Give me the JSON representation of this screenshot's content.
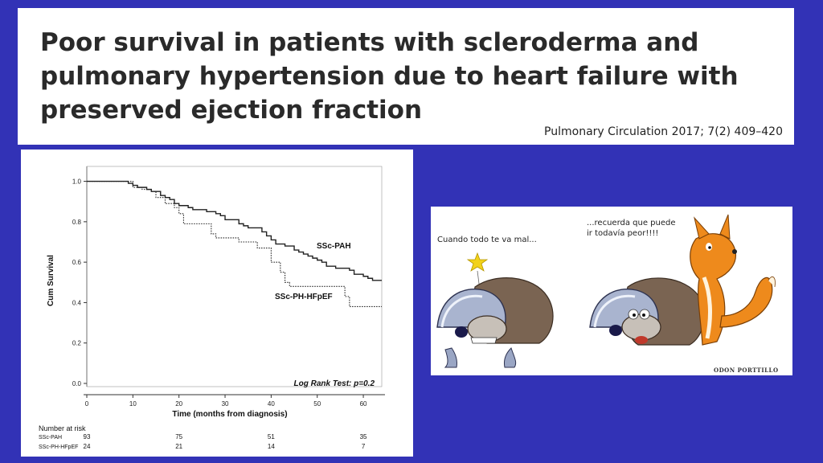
{
  "header": {
    "title": "Poor survival in patients with scleroderma and pulmonary hypertension due to heart failure with preserved ejection fraction",
    "citation": "Pulmonary Circulation 2017; 7(2) 409–420"
  },
  "chart_data": {
    "type": "line",
    "xlabel": "Time (months from diagnosis)",
    "ylabel": "Cum Survival",
    "xlim": [
      0,
      64
    ],
    "ylim": [
      0,
      1.05
    ],
    "xticks": [
      0,
      10,
      20,
      30,
      40,
      50,
      60
    ],
    "yticks": [
      0.0,
      0.2,
      0.4,
      0.6,
      0.8,
      1.0
    ],
    "annotation": "Log Rank Test: p=0.2",
    "series": [
      {
        "name": "SSc-PAH",
        "style": "solid",
        "steps": [
          [
            0,
            1.0
          ],
          [
            9,
            0.99
          ],
          [
            10,
            0.98
          ],
          [
            11,
            0.97
          ],
          [
            13,
            0.96
          ],
          [
            14,
            0.95
          ],
          [
            16,
            0.93
          ],
          [
            17,
            0.92
          ],
          [
            18,
            0.91
          ],
          [
            19,
            0.89
          ],
          [
            20,
            0.88
          ],
          [
            22,
            0.87
          ],
          [
            23,
            0.86
          ],
          [
            26,
            0.85
          ],
          [
            28,
            0.84
          ],
          [
            29,
            0.83
          ],
          [
            30,
            0.81
          ],
          [
            33,
            0.79
          ],
          [
            34,
            0.78
          ],
          [
            35,
            0.77
          ],
          [
            38,
            0.75
          ],
          [
            39,
            0.73
          ],
          [
            40,
            0.71
          ],
          [
            41,
            0.69
          ],
          [
            43,
            0.68
          ],
          [
            45,
            0.66
          ],
          [
            46,
            0.65
          ],
          [
            47,
            0.64
          ],
          [
            48,
            0.63
          ],
          [
            49,
            0.62
          ],
          [
            50,
            0.61
          ],
          [
            51,
            0.6
          ],
          [
            52,
            0.58
          ],
          [
            54,
            0.57
          ],
          [
            57,
            0.56
          ],
          [
            58,
            0.54
          ],
          [
            60,
            0.53
          ],
          [
            61,
            0.52
          ],
          [
            62,
            0.51
          ],
          [
            64,
            0.51
          ]
        ]
      },
      {
        "name": "SSc-PH-HFpEF",
        "style": "dotted",
        "steps": [
          [
            0,
            1.0
          ],
          [
            10,
            0.97
          ],
          [
            12,
            0.96
          ],
          [
            14,
            0.95
          ],
          [
            15,
            0.92
          ],
          [
            17,
            0.89
          ],
          [
            19,
            0.87
          ],
          [
            20,
            0.84
          ],
          [
            21,
            0.79
          ],
          [
            27,
            0.74
          ],
          [
            28,
            0.72
          ],
          [
            33,
            0.7
          ],
          [
            37,
            0.67
          ],
          [
            40,
            0.6
          ],
          [
            42,
            0.55
          ],
          [
            43,
            0.5
          ],
          [
            44,
            0.48
          ],
          [
            56,
            0.43
          ],
          [
            57,
            0.38
          ],
          [
            64,
            0.38
          ]
        ]
      }
    ],
    "risk_table": {
      "title": "Number at risk",
      "columns_x": [
        0,
        20,
        40,
        60
      ],
      "rows": [
        {
          "label": "SSc-PAH",
          "values": [
            "93",
            "75",
            "51",
            "35"
          ]
        },
        {
          "label": "SSc-PH-HFpEF",
          "values": [
            "24",
            "21",
            "14",
            "7"
          ]
        }
      ]
    }
  },
  "cartoon": {
    "caption_left": "Cuando todo te va mal...",
    "caption_right": "...recuerda que puede ir todavía peor!!!!",
    "credit": "ODON PORTTILLO"
  }
}
